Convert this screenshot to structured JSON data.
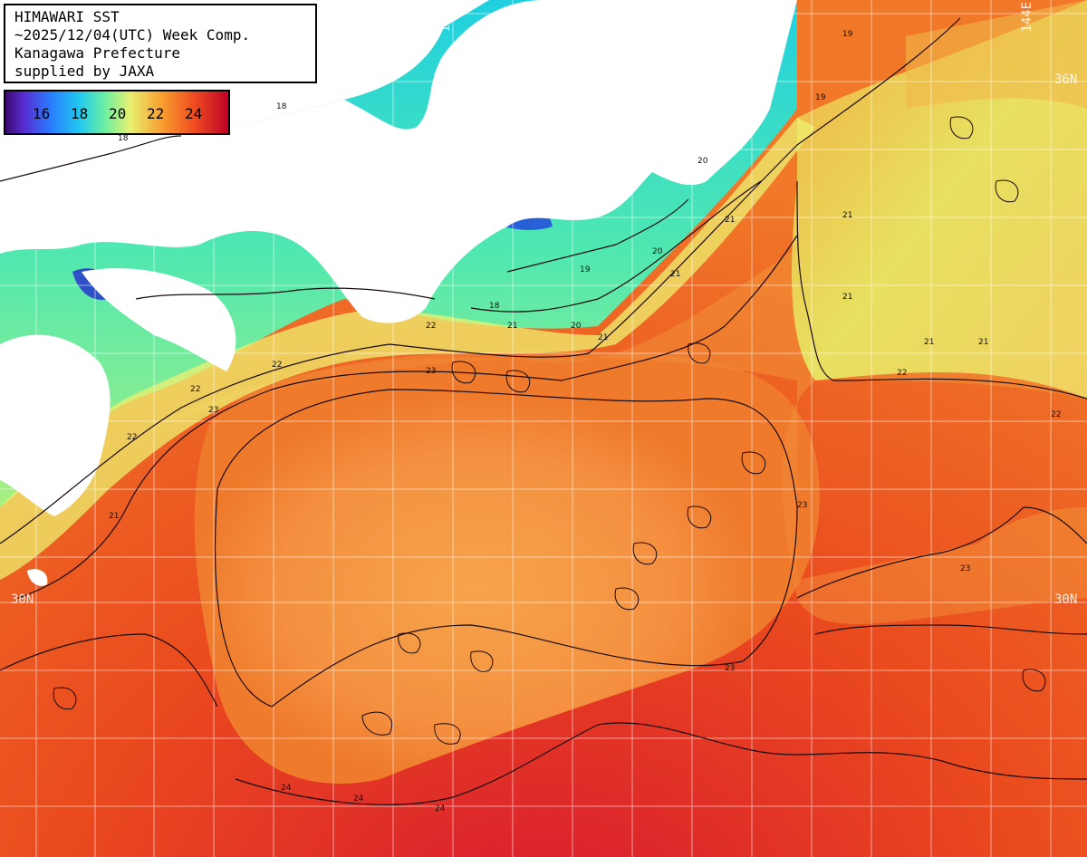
{
  "title": {
    "line1": "HIMAWARI SST",
    "line2": "~2025/12/04(UTC) Week Comp.",
    "line3": "Kanagawa Prefecture",
    "line4": "supplied by JAXA"
  },
  "legend": {
    "labels": [
      "16",
      "18",
      "20",
      "22",
      "24"
    ],
    "colors": [
      "#3a0a6e",
      "#2a7aff",
      "#20c8f0",
      "#e8f070",
      "#f05020",
      "#c00028"
    ]
  },
  "grid_labels": {
    "lon_138": "138E",
    "lon_144": "144E",
    "lat_36_right": "36N",
    "lat_30_left": "30N",
    "lat_30_right": "30N"
  },
  "contour_labels": [
    "18",
    "19",
    "20",
    "21",
    "22",
    "23",
    "24"
  ]
}
